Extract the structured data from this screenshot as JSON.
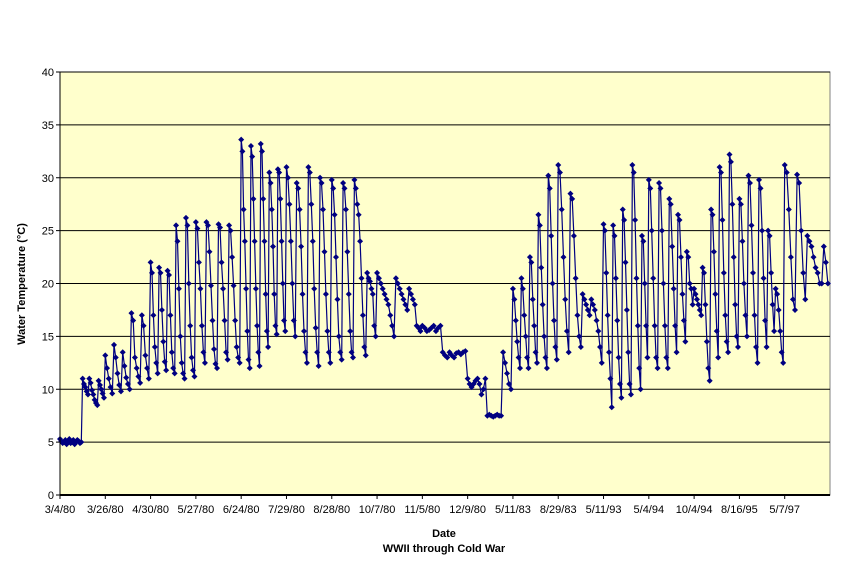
{
  "chart_data": {
    "type": "line",
    "title": "",
    "xlabel": "Date",
    "xsublabel": "WWII through Cold War",
    "ylabel": "Water Temperature (°C)",
    "ylim": [
      0,
      40
    ],
    "yticks": [
      0,
      5,
      10,
      15,
      20,
      25,
      30,
      35,
      40
    ],
    "grid": true,
    "legend": "none",
    "colors": {
      "plot_bg": "#ffffcc",
      "series": "#000080",
      "grid": "#000000"
    },
    "marker": "diamond",
    "x_tick_labels": [
      "3/4/80",
      "3/26/80",
      "4/30/80",
      "5/27/80",
      "6/24/80",
      "7/29/80",
      "8/28/80",
      "10/7/80",
      "11/5/80",
      "12/9/80",
      "5/11/83",
      "8/29/83",
      "5/11/93",
      "5/4/94",
      "10/4/94",
      "8/16/95",
      "5/7/97"
    ],
    "series": [
      {
        "segments": [
          {
            "from": "3/4/80",
            "to": "3/26/80",
            "values": [
              5.3,
              5.1,
              4.9,
              5.0,
              5.2,
              4.8,
              5.1,
              5.3,
              4.9,
              5.0,
              5.2,
              4.8,
              5.0,
              5.2,
              5.1,
              4.9,
              5.0,
              11.0,
              10.5,
              10.2,
              9.8,
              9.5,
              11.0,
              10.6,
              9.9,
              9.5,
              9.0,
              8.7,
              8.5,
              10.8,
              10.4,
              10.0,
              9.6,
              9.2
            ]
          },
          {
            "from": "3/26/80",
            "to": "4/30/80",
            "values": [
              13.2,
              12.0,
              11.0,
              10.2,
              9.6,
              14.2,
              13.0,
              11.5,
              10.4,
              9.8,
              13.5,
              12.2,
              11.1,
              10.5,
              10.0,
              17.2,
              16.5,
              13.0,
              12.0,
              11.2,
              10.6,
              17.0,
              16.0,
              13.2,
              12.0,
              11.0
            ]
          },
          {
            "from": "4/30/80",
            "to": "5/27/80",
            "values": [
              22.0,
              21.0,
              17.0,
              14.0,
              12.5,
              11.5,
              21.5,
              21.0,
              17.5,
              14.5,
              12.6,
              11.8,
              21.2,
              20.8,
              17.0,
              13.5,
              12.0,
              11.5,
              25.5,
              24.0,
              19.5,
              15.0,
              12.5,
              11.5,
              11.0,
              26.2,
              25.5,
              20.0,
              16.0,
              13.0,
              11.8,
              11.2
            ]
          },
          {
            "from": "5/27/80",
            "to": "6/24/80",
            "values": [
              25.8,
              25.2,
              22.0,
              19.5,
              16.0,
              13.5,
              12.5,
              25.8,
              25.5,
              23.0,
              19.8,
              16.5,
              13.8,
              12.4,
              12.0,
              25.6,
              25.3,
              22.0,
              19.5,
              16.5,
              13.5,
              12.8,
              25.5,
              25.0,
              22.5,
              19.8,
              16.5,
              14.0,
              13.0,
              12.5
            ]
          },
          {
            "from": "6/24/80",
            "to": "7/29/80",
            "values": [
              33.6,
              32.5,
              27.0,
              24.0,
              19.5,
              15.5,
              12.8,
              12.0,
              33.0,
              32.0,
              28.0,
              24.0,
              19.5,
              16.0,
              13.5,
              12.2,
              33.2,
              32.5,
              28.0,
              24.0,
              19.0,
              15.5,
              14.0,
              30.5,
              29.5,
              27.0,
              23.5,
              19.0,
              16.0,
              15.2,
              30.8,
              30.5,
              28.0,
              24.0,
              20.0,
              16.5,
              15.5
            ]
          },
          {
            "from": "7/29/80",
            "to": "8/28/80",
            "values": [
              31.0,
              30.0,
              27.5,
              24.0,
              20.0,
              16.5,
              15.0,
              29.5,
              29.0,
              27.0,
              23.5,
              19.0,
              15.5,
              13.5,
              12.5,
              31.0,
              30.5,
              27.5,
              24.0,
              19.5,
              15.8,
              13.5,
              12.2,
              30.0,
              29.5,
              27.0,
              23.0,
              19.0,
              15.5,
              13.5,
              12.5
            ]
          },
          {
            "from": "8/28/80",
            "to": "10/7/80",
            "values": [
              29.8,
              29.0,
              26.5,
              22.5,
              18.5,
              15.0,
              13.5,
              12.8,
              29.5,
              29.0,
              27.0,
              23.0,
              19.0,
              15.5,
              13.5,
              13.0,
              29.8,
              29.0,
              27.5,
              26.5,
              24.0,
              20.5,
              17.0,
              14.0,
              13.2,
              21.0,
              20.5,
              20.2,
              19.5,
              19.0,
              16.0,
              15.0
            ]
          },
          {
            "from": "10/7/80",
            "to": "11/5/80",
            "values": [
              21.0,
              20.5,
              20.0,
              19.5,
              19.0,
              18.5,
              18.0,
              17.0,
              16.0,
              15.0,
              20.5,
              20.0,
              19.5,
              19.0,
              18.5,
              18.0,
              17.5,
              19.5,
              19.0,
              18.5,
              18.0,
              16.0,
              15.8,
              15.5
            ]
          },
          {
            "from": "11/5/80",
            "to": "12/9/80",
            "values": [
              16.0,
              15.8,
              15.5,
              15.6,
              15.8,
              16.0,
              15.5,
              15.8,
              16.0,
              13.5,
              13.2,
              13.0,
              13.5,
              13.2,
              13.0,
              13.4,
              13.5,
              13.3,
              13.5,
              13.6
            ]
          },
          {
            "from": "12/9/80",
            "to": "5/11/83",
            "values": [
              11.0,
              10.5,
              10.2,
              10.5,
              10.8,
              11.0,
              10.5,
              9.5,
              10.0,
              11.0,
              7.5,
              7.6,
              7.5,
              7.4,
              7.5,
              7.6,
              7.5,
              7.5,
              13.5,
              12.5,
              11.5,
              10.5,
              10.0
            ]
          },
          {
            "from": "5/11/83",
            "to": "8/29/83",
            "values": [
              19.5,
              18.5,
              16.5,
              14.5,
              13.0,
              12.0,
              20.5,
              19.5,
              17.0,
              15.0,
              13.0,
              12.0,
              22.5,
              22.0,
              18.5,
              16.0,
              13.5,
              12.5,
              26.5,
              25.5,
              21.5,
              18.0,
              15.0,
              13.0,
              12.0,
              30.2,
              29.0,
              24.5,
              20.0,
              16.5,
              14.0,
              12.8
            ]
          },
          {
            "from": "8/29/83",
            "to": "5/11/93",
            "values": [
              31.2,
              30.5,
              27.0,
              22.5,
              18.5,
              15.5,
              13.5,
              28.5,
              28.0,
              24.5,
              20.5,
              17.0,
              15.0,
              14.0,
              19.0,
              18.5,
              18.0,
              17.5,
              17.0,
              18.5,
              18.0,
              17.5,
              16.5,
              15.5,
              14.0,
              12.5
            ]
          },
          {
            "from": "5/11/93",
            "to": "5/4/94",
            "values": [
              25.6,
              25.0,
              21.0,
              17.0,
              13.5,
              11.0,
              8.3,
              25.5,
              24.5,
              20.5,
              16.5,
              13.0,
              10.5,
              9.2,
              27.0,
              26.0,
              22.0,
              17.5,
              13.5,
              10.5,
              9.5,
              31.2,
              30.5,
              26.0,
              20.5,
              16.0,
              12.0,
              10.0,
              24.5,
              24.0,
              20.0,
              16.0,
              13.0
            ]
          },
          {
            "from": "5/4/94",
            "to": "10/4/94",
            "values": [
              29.8,
              29.0,
              25.0,
              20.5,
              16.0,
              13.0,
              12.0,
              29.5,
              29.0,
              25.0,
              20.0,
              16.0,
              13.0,
              12.0,
              28.0,
              27.5,
              23.5,
              19.5,
              16.0,
              13.5,
              26.5,
              26.0,
              22.5,
              19.0,
              16.5,
              14.5,
              23.0,
              22.5,
              20.0,
              19.5,
              18.0
            ]
          },
          {
            "from": "10/4/94",
            "to": "8/16/95",
            "values": [
              19.5,
              19.0,
              18.5,
              18.0,
              17.5,
              17.0,
              21.5,
              21.0,
              18.0,
              14.5,
              12.0,
              10.8,
              27.0,
              26.5,
              23.0,
              19.0,
              15.5,
              13.0,
              31.0,
              30.5,
              26.0,
              21.0,
              17.0,
              14.5,
              13.5,
              32.2,
              31.5,
              27.5,
              22.5,
              18.0,
              15.0,
              14.0
            ]
          },
          {
            "from": "8/16/95",
            "to": "5/7/97",
            "values": [
              28.0,
              27.5,
              24.0,
              20.0,
              17.0,
              15.0,
              30.2,
              29.5,
              25.5,
              21.0,
              17.0,
              14.0,
              12.5,
              29.8,
              29.0,
              25.0,
              20.5,
              16.5,
              14.0,
              25.0,
              24.5,
              21.0,
              18.0,
              15.5,
              19.5,
              19.0,
              17.5,
              15.5,
              13.5,
              12.5
            ]
          },
          {
            "from": "5/7/97",
            "to": "end",
            "values": [
              31.2,
              30.5,
              27.0,
              22.5,
              18.5,
              17.5,
              30.3,
              29.5,
              25.0,
              21.0,
              18.5,
              24.5,
              24.0,
              23.5,
              22.5,
              21.5,
              21.0,
              20.0,
              20.0,
              23.5,
              22.0,
              20.0
            ]
          }
        ]
      }
    ]
  }
}
